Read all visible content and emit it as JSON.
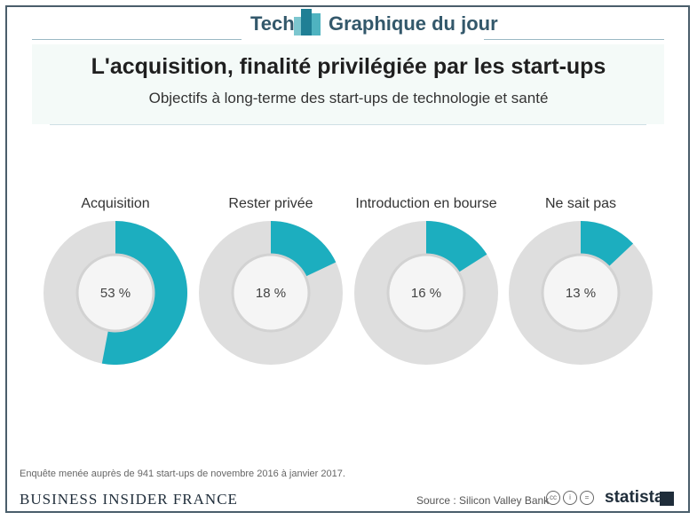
{
  "header": {
    "left": "Tech",
    "right": "Graphique du jour"
  },
  "title": "L'acquisition, finalité privilégiée par les start-ups",
  "subtitle": "Objectifs à long-terme des start-ups de technologie et santé",
  "colors": {
    "accent": "#1caebf",
    "remainder": "#dedede",
    "center": "#f5f5f5",
    "frame": "#4a5e6b"
  },
  "chart_data": {
    "type": "pie",
    "variant": "donut",
    "unit": "%",
    "categories": [
      "Acquisition",
      "Rester privée",
      "Introduction en bourse",
      "Ne sait pas"
    ],
    "values": [
      53,
      18,
      16,
      13
    ],
    "labels": [
      "53 %",
      "18 %",
      "16 %",
      "13 %"
    ]
  },
  "footer": {
    "note": "Enquête menée auprès de 941 start-ups de novembre 2016 à janvier 2017.",
    "publisher": "BUSINESS INSIDER FRANCE",
    "source": "Source : Silicon Valley Bank",
    "brand": "statista",
    "license_icons": [
      "cc-icon",
      "by-icon",
      "nd-icon"
    ]
  }
}
